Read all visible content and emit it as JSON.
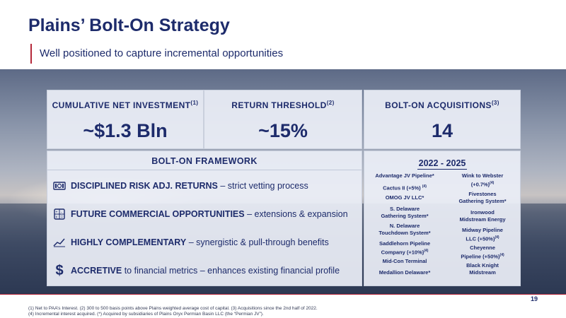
{
  "header": {
    "title": "Plains’ Bolt-On Strategy",
    "subtitle": "Well positioned to capture incremental opportunities"
  },
  "metrics": [
    {
      "label": "CUMULATIVE NET INVESTMENT",
      "note": "(1)",
      "value": "~$1.3 Bln"
    },
    {
      "label": "RETURN THRESHOLD",
      "note": "(2)",
      "value": "~15%"
    },
    {
      "label": "BOLT-ON ACQUISITIONS",
      "note": "(3)",
      "value": "14"
    }
  ],
  "framework": {
    "title": "BOLT-ON FRAMEWORK",
    "items": [
      {
        "icon": "money-icon",
        "bold": "DISCIPLINED RISK ADJ. RETURNS",
        "rest": " – strict vetting process"
      },
      {
        "icon": "calculator-icon",
        "bold": "FUTURE COMMERCIAL OPPORTUNITIES",
        "rest": " – extensions & expansion"
      },
      {
        "icon": "trend-chart-icon",
        "bold": "HIGHLY COMPLEMENTARY",
        "rest": " – synergistic & pull-through benefits"
      },
      {
        "icon": "dollar-icon",
        "bold": "ACCRETIVE",
        "rest": " to financial metrics – enhances existing financial profile"
      }
    ]
  },
  "acquisitions": {
    "period": "2022 - 2025",
    "left": [
      {
        "l1": "Advantage JV Pipeline*",
        "l2": "",
        "sup": ""
      },
      {
        "l1": "Cactus II (+5%)",
        "l2": "",
        "sup": "(4)"
      },
      {
        "l1": "OMOG JV LLC*",
        "l2": "",
        "sup": ""
      },
      {
        "l1": "S. Delaware",
        "l2": "Gathering System*",
        "sup": ""
      },
      {
        "l1": "N. Delaware",
        "l2": "Touchdown System*",
        "sup": ""
      },
      {
        "l1": "Saddlehorn Pipeline",
        "l2": "Company (+10%)",
        "sup": "(4)"
      },
      {
        "l1": "Mid-Con Terminal",
        "l2": "",
        "sup": ""
      },
      {
        "l1": "Medallion Delaware*",
        "l2": "",
        "sup": ""
      }
    ],
    "right": [
      {
        "l1": "Wink to Webster",
        "l2": "(+0.7%)",
        "sup": "(4)"
      },
      {
        "l1": "Fivestones",
        "l2": "Gathering System*",
        "sup": ""
      },
      {
        "l1": "Ironwood",
        "l2": "Midstream Energy",
        "sup": ""
      },
      {
        "l1": "Midway Pipeline",
        "l2": "LLC (+50%)",
        "sup": "(4)"
      },
      {
        "l1": "Cheyenne",
        "l2": "Pipeline (+50%)",
        "sup": "(4)"
      },
      {
        "l1": "Black Knight",
        "l2": "Midstream",
        "sup": ""
      }
    ]
  },
  "footnotes": [
    "(1) Net to PAA’s Interest. (2) 300 to 500 basis points above Plains weighted average cost of capital. (3) Acquisitions since the 2nd half of 2022.",
    "(4) Incremental interest acquired. (*) Acquired by subsidiaries of Plains Oryx Permian Basin LLC (the “Permian JV”)."
  ],
  "page_number": "19",
  "colors": {
    "navy": "#1d2b6b",
    "accent_red": "#b5283a"
  }
}
